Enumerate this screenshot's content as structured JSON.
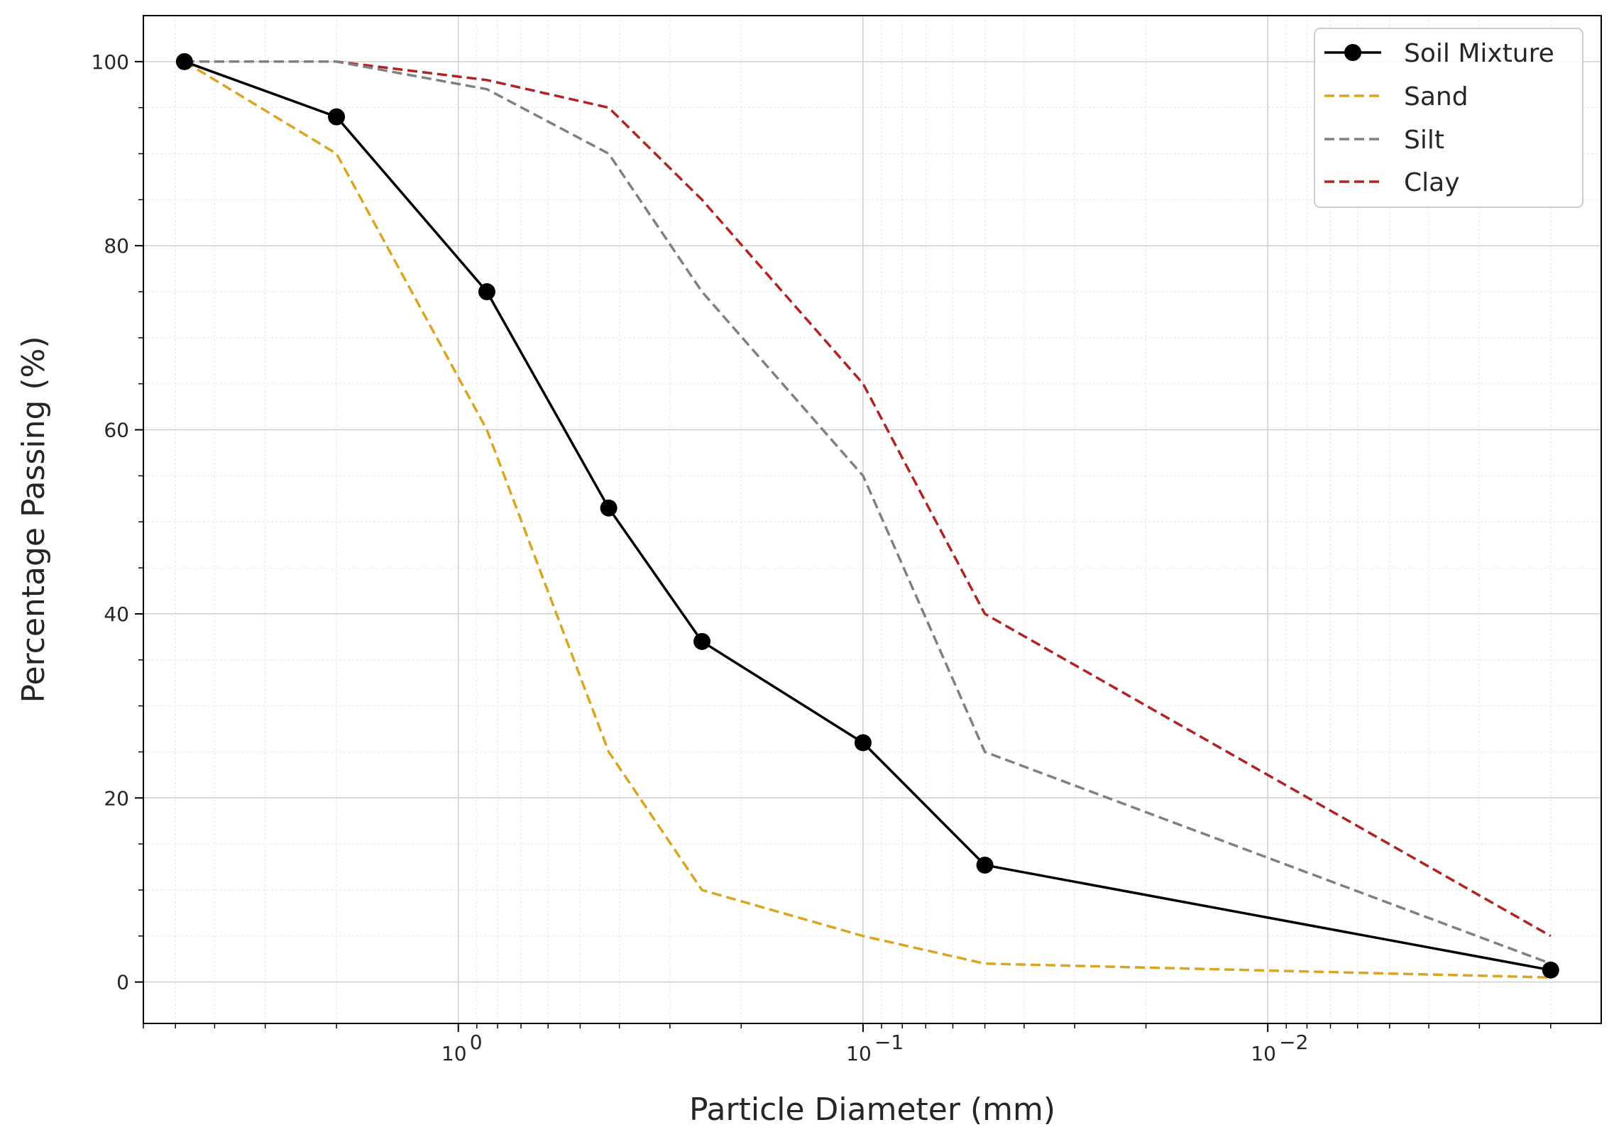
{
  "chart_data": {
    "type": "line",
    "title": "",
    "xlabel": "Particle Diameter (mm)",
    "ylabel": "Percentage Passing (%)",
    "x_scale": "log",
    "x_reversed": true,
    "x_lim": [
      6.0,
      0.0015
    ],
    "y_lim": [
      -4.5,
      105
    ],
    "x_ticks": [
      {
        "value": 1,
        "label": "10",
        "exp": "0"
      },
      {
        "value": 0.1,
        "label": "10",
        "exp": "−1"
      },
      {
        "value": 0.01,
        "label": "10",
        "exp": "−2"
      }
    ],
    "y_ticks": [
      0,
      20,
      40,
      60,
      80,
      100
    ],
    "grid": true,
    "legend_position": "top-right",
    "x": [
      4.75,
      2.0,
      0.85,
      0.425,
      0.25,
      0.1,
      0.05,
      0.002
    ],
    "series": [
      {
        "name": "Soil Mixture",
        "values": [
          100,
          94,
          75,
          51.5,
          37,
          26,
          12.7,
          1.3
        ],
        "color": "#000000",
        "dash": "solid",
        "markers": true
      },
      {
        "name": "Sand",
        "values": [
          100,
          90,
          60,
          25,
          10,
          5,
          2,
          0.5
        ],
        "color": "#DAA520",
        "dash": "dashed",
        "markers": false
      },
      {
        "name": "Silt",
        "values": [
          100,
          100,
          97,
          90,
          75,
          55,
          25,
          2
        ],
        "color": "#808080",
        "dash": "dashed",
        "markers": false
      },
      {
        "name": "Clay",
        "values": [
          100,
          100,
          98,
          95,
          85,
          65,
          40,
          5
        ],
        "color": "#B22222",
        "dash": "dashed",
        "markers": false
      }
    ]
  }
}
